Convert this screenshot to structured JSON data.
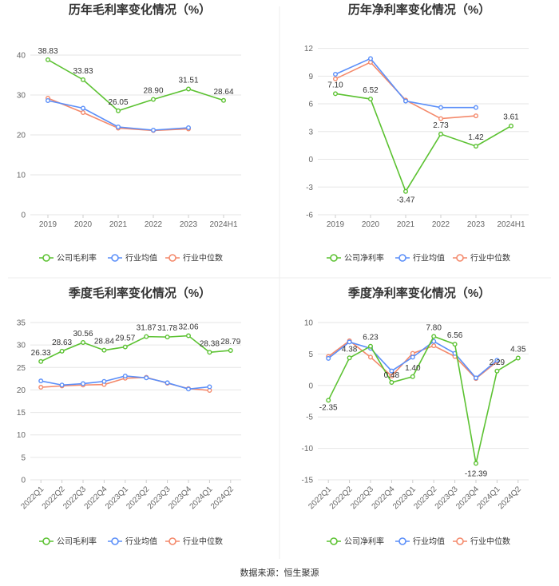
{
  "source": "数据来源：恒生聚源",
  "colors": {
    "company": "#5cc232",
    "avg": "#5b8ff9",
    "median": "#f4896b",
    "grid": "#e6e6e6",
    "divider": "#eeeeee"
  },
  "chart_data": [
    {
      "type": "line",
      "title": "历年毛利率变化情况（%）",
      "categories": [
        "2019",
        "2020",
        "2021",
        "2022",
        "2023",
        "2024H1"
      ],
      "yticks": [
        0,
        10,
        20,
        30,
        40
      ],
      "ylim": [
        0,
        44
      ],
      "rotate_x": false,
      "series": [
        {
          "name": "公司毛利率",
          "key": "company",
          "values": [
            38.83,
            33.83,
            26.05,
            28.9,
            31.51,
            28.64
          ],
          "labels": [
            "38.83",
            "33.83",
            "26.05",
            "28.90",
            "31.51",
            "28.64"
          ]
        },
        {
          "name": "行业均值",
          "key": "avg",
          "values": [
            28.6,
            26.7,
            22.0,
            21.2,
            21.8,
            null
          ]
        },
        {
          "name": "行业中位数",
          "key": "median",
          "values": [
            29.2,
            25.6,
            21.7,
            21.1,
            21.5,
            null
          ]
        }
      ]
    },
    {
      "type": "line",
      "title": "历年净利率变化情况（%）",
      "categories": [
        "2019",
        "2020",
        "2021",
        "2022",
        "2023",
        "2024H1"
      ],
      "yticks": [
        -6,
        -3,
        0,
        3,
        6,
        9,
        12
      ],
      "ylim": [
        -6,
        13
      ],
      "rotate_x": false,
      "series": [
        {
          "name": "公司净利率",
          "key": "company",
          "values": [
            7.1,
            6.52,
            -3.47,
            2.73,
            1.42,
            3.61
          ],
          "labels": [
            "7.10",
            "6.52",
            "-3.47",
            "2.73",
            "1.42",
            "3.61"
          ]
        },
        {
          "name": "行业均值",
          "key": "avg",
          "values": [
            9.2,
            10.9,
            6.3,
            5.6,
            5.6,
            null
          ]
        },
        {
          "name": "行业中位数",
          "key": "median",
          "values": [
            8.7,
            10.5,
            6.4,
            4.4,
            4.7,
            null
          ]
        }
      ]
    },
    {
      "type": "line",
      "title": "季度毛利率变化情况（%）",
      "categories": [
        "2022Q1",
        "2022Q2",
        "2022Q3",
        "2022Q4",
        "2023Q1",
        "2023Q2",
        "2023Q3",
        "2023Q4",
        "2024Q1",
        "2024Q2"
      ],
      "yticks": [
        0,
        5,
        10,
        15,
        20,
        25,
        30,
        35
      ],
      "ylim": [
        0,
        35
      ],
      "rotate_x": true,
      "series": [
        {
          "name": "公司毛利率",
          "key": "company",
          "values": [
            26.33,
            28.63,
            30.56,
            28.84,
            29.57,
            31.87,
            31.78,
            32.06,
            28.38,
            28.79
          ],
          "labels": [
            "26.33",
            "28.63",
            "30.56",
            "28.84",
            "29.57",
            "31.87",
            "31.78",
            "32.06",
            "28.38",
            "28.79"
          ]
        },
        {
          "name": "行业均值",
          "key": "avg",
          "values": [
            22.0,
            21.1,
            21.4,
            21.9,
            23.1,
            22.7,
            21.6,
            20.2,
            20.7,
            null
          ]
        },
        {
          "name": "行业中位数",
          "key": "median",
          "values": [
            20.6,
            20.9,
            21.1,
            21.2,
            22.6,
            22.8,
            21.5,
            20.3,
            19.9,
            null
          ]
        }
      ]
    },
    {
      "type": "line",
      "title": "季度净利率变化情况（%）",
      "categories": [
        "2022Q1",
        "2022Q2",
        "2022Q3",
        "2022Q4",
        "2023Q1",
        "2023Q2",
        "2023Q3",
        "2023Q4",
        "2024Q1",
        "2024Q2"
      ],
      "yticks": [
        -15,
        -10,
        -5,
        0,
        5,
        10
      ],
      "ylim": [
        -15,
        10
      ],
      "rotate_x": true,
      "series": [
        {
          "name": "公司净利率",
          "key": "company",
          "values": [
            -2.35,
            4.38,
            6.23,
            0.48,
            1.4,
            7.8,
            6.56,
            -12.39,
            2.29,
            4.35
          ],
          "labels": [
            "-2.35",
            "4.38",
            "6.23",
            "0.48",
            "1.40",
            "7.80",
            "6.56",
            "-12.39",
            "2.29",
            "4.35"
          ]
        },
        {
          "name": "行业均值",
          "key": "avg",
          "values": [
            4.3,
            6.9,
            5.9,
            2.3,
            4.5,
            7.0,
            5.1,
            1.2,
            4.0,
            null
          ]
        },
        {
          "name": "行业中位数",
          "key": "median",
          "values": [
            4.6,
            7.1,
            4.5,
            1.5,
            5.1,
            6.3,
            4.6,
            1.1,
            3.8,
            null
          ]
        }
      ]
    }
  ]
}
